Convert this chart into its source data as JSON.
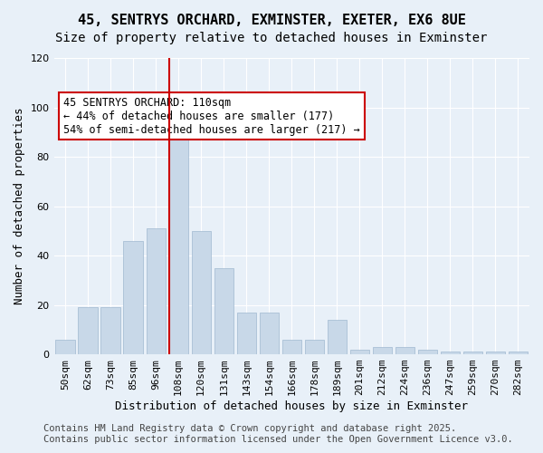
{
  "title_line1": "45, SENTRYS ORCHARD, EXMINSTER, EXETER, EX6 8UE",
  "title_line2": "Size of property relative to detached houses in Exminster",
  "xlabel": "Distribution of detached houses by size in Exminster",
  "ylabel": "Number of detached properties",
  "categories": [
    "50sqm",
    "62sqm",
    "73sqm",
    "85sqm",
    "96sqm",
    "108sqm",
    "120sqm",
    "131sqm",
    "143sqm",
    "154sqm",
    "166sqm",
    "178sqm",
    "189sqm",
    "201sqm",
    "212sqm",
    "224sqm",
    "236sqm",
    "247sqm",
    "259sqm",
    "270sqm",
    "282sqm"
  ],
  "values": [
    6,
    19,
    19,
    46,
    51,
    90,
    50,
    35,
    17,
    17,
    6,
    6,
    14,
    2,
    3,
    3,
    2,
    1,
    1,
    1,
    1
  ],
  "bar_color": "#c8d8e8",
  "bar_edge_color": "#a0b8d0",
  "highlight_index": 5,
  "highlight_line_color": "#cc0000",
  "annotation_text": "45 SENTRYS ORCHARD: 110sqm\n← 44% of detached houses are smaller (177)\n54% of semi-detached houses are larger (217) →",
  "annotation_box_color": "#ffffff",
  "annotation_box_edge_color": "#cc0000",
  "ylim": [
    0,
    120
  ],
  "yticks": [
    0,
    20,
    40,
    60,
    80,
    100,
    120
  ],
  "footer_text": "Contains HM Land Registry data © Crown copyright and database right 2025.\nContains public sector information licensed under the Open Government Licence v3.0.",
  "bg_color": "#e8f0f8",
  "plot_bg_color": "#e8f0f8",
  "grid_color": "#ffffff",
  "title_fontsize": 11,
  "subtitle_fontsize": 10,
  "axis_label_fontsize": 9,
  "tick_fontsize": 8,
  "annotation_fontsize": 8.5,
  "footer_fontsize": 7.5
}
